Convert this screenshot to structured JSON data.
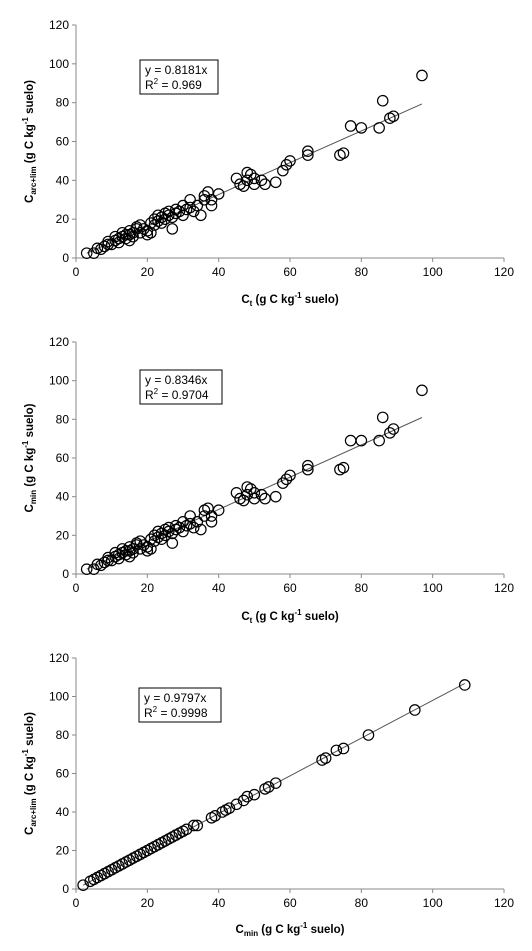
{
  "chart_data": [
    {
      "type": "scatter",
      "xlim": [
        0,
        120
      ],
      "ylim": [
        0,
        120
      ],
      "xticks": [
        "0",
        "20",
        "40",
        "60",
        "80",
        "100",
        "120"
      ],
      "yticks": [
        "0",
        "20",
        "40",
        "60",
        "80",
        "100",
        "120"
      ],
      "grid": false,
      "xlabel": {
        "base": "C",
        "sub": "t",
        "sup": "",
        "text1": " (g C kg",
        "sup2": "-1",
        "text2": " suelo)"
      },
      "ylabel": {
        "base": "C",
        "sub": "arc+lim",
        "text1": " (g C kg",
        "sup2": "-1",
        "text2": " suelo)"
      },
      "equation": "y = 0.8181x",
      "r2_base": "R",
      "r2_sup": "2",
      "r2_rest": " = 0.969",
      "slope": 0.8181,
      "trendline_x": [
        3,
        97
      ],
      "points": [
        [
          3,
          2.5
        ],
        [
          5,
          2.5
        ],
        [
          6,
          5
        ],
        [
          7,
          4.5
        ],
        [
          8,
          6
        ],
        [
          9,
          7
        ],
        [
          9,
          8.5
        ],
        [
          10,
          7
        ],
        [
          11,
          9
        ],
        [
          11,
          11
        ],
        [
          12,
          8
        ],
        [
          12,
          10
        ],
        [
          13,
          11
        ],
        [
          13,
          13
        ],
        [
          14,
          10
        ],
        [
          14,
          12
        ],
        [
          15,
          9
        ],
        [
          15,
          12
        ],
        [
          15,
          14
        ],
        [
          16,
          11
        ],
        [
          16,
          13
        ],
        [
          17,
          15
        ],
        [
          17,
          16
        ],
        [
          18,
          13
        ],
        [
          18,
          17
        ],
        [
          19,
          15
        ],
        [
          20,
          14
        ],
        [
          20,
          12
        ],
        [
          21,
          18
        ],
        [
          21,
          13
        ],
        [
          22,
          17
        ],
        [
          22,
          20
        ],
        [
          23,
          19
        ],
        [
          23,
          22
        ],
        [
          24,
          18
        ],
        [
          24,
          21
        ],
        [
          25,
          23
        ],
        [
          25,
          20
        ],
        [
          26,
          22
        ],
        [
          26,
          24
        ],
        [
          27,
          21
        ],
        [
          27,
          15
        ],
        [
          28,
          25
        ],
        [
          28,
          23
        ],
        [
          29,
          24
        ],
        [
          30,
          27
        ],
        [
          30,
          22
        ],
        [
          31,
          25
        ],
        [
          32,
          30
        ],
        [
          32,
          26
        ],
        [
          33,
          24
        ],
        [
          34,
          27
        ],
        [
          35,
          22
        ],
        [
          36,
          30
        ],
        [
          36,
          32
        ],
        [
          37,
          34
        ],
        [
          38,
          30
        ],
        [
          38,
          27
        ],
        [
          40,
          33
        ],
        [
          45,
          41
        ],
        [
          46,
          38
        ],
        [
          47,
          37
        ],
        [
          48,
          40
        ],
        [
          48,
          44
        ],
        [
          49,
          43
        ],
        [
          50,
          41
        ],
        [
          50,
          38
        ],
        [
          52,
          40
        ],
        [
          53,
          38
        ],
        [
          56,
          39
        ],
        [
          58,
          45
        ],
        [
          59,
          48
        ],
        [
          60,
          50
        ],
        [
          65,
          53
        ],
        [
          65,
          55
        ],
        [
          74,
          53
        ],
        [
          75,
          54
        ],
        [
          77,
          68
        ],
        [
          80,
          67
        ],
        [
          85,
          67
        ],
        [
          86,
          81
        ],
        [
          88,
          72
        ],
        [
          89,
          73
        ],
        [
          97,
          94
        ]
      ]
    },
    {
      "type": "scatter",
      "xlim": [
        0,
        120
      ],
      "ylim": [
        0,
        120
      ],
      "xticks": [
        "0",
        "20",
        "40",
        "60",
        "80",
        "100",
        "120"
      ],
      "yticks": [
        "0",
        "20",
        "40",
        "60",
        "80",
        "100",
        "120"
      ],
      "grid": false,
      "xlabel": {
        "base": "C",
        "sub": "t",
        "sup": "",
        "text1": " (g C kg",
        "sup2": "-1",
        "text2": " suelo)"
      },
      "ylabel": {
        "base": "C",
        "sub": "min",
        "text1": " (g C kg",
        "sup2": "-1",
        "text2": " suelo)"
      },
      "equation": "y = 0.8346x",
      "r2_base": "R",
      "r2_sup": "2",
      "r2_rest": " = 0.9704",
      "slope": 0.8346,
      "trendline_x": [
        3,
        97
      ],
      "points": [
        [
          3,
          2.5
        ],
        [
          5,
          2.5
        ],
        [
          6,
          5
        ],
        [
          7,
          4.5
        ],
        [
          8,
          6
        ],
        [
          9,
          7
        ],
        [
          9,
          8.5
        ],
        [
          10,
          7
        ],
        [
          11,
          9
        ],
        [
          11,
          11
        ],
        [
          12,
          8
        ],
        [
          12,
          10
        ],
        [
          13,
          11
        ],
        [
          13,
          13
        ],
        [
          14,
          10
        ],
        [
          14,
          12
        ],
        [
          15,
          9
        ],
        [
          15,
          12
        ],
        [
          15,
          14
        ],
        [
          16,
          11
        ],
        [
          16,
          13
        ],
        [
          17,
          15
        ],
        [
          17,
          16
        ],
        [
          18,
          13
        ],
        [
          18,
          17
        ],
        [
          19,
          15
        ],
        [
          20,
          14
        ],
        [
          20,
          12
        ],
        [
          21,
          18
        ],
        [
          21,
          13
        ],
        [
          22,
          17
        ],
        [
          22,
          20
        ],
        [
          23,
          19
        ],
        [
          23,
          22
        ],
        [
          24,
          18
        ],
        [
          24,
          21
        ],
        [
          25,
          23
        ],
        [
          25,
          20
        ],
        [
          26,
          22
        ],
        [
          26,
          24
        ],
        [
          27,
          21
        ],
        [
          27,
          16
        ],
        [
          28,
          25
        ],
        [
          28,
          23
        ],
        [
          29,
          24
        ],
        [
          30,
          27
        ],
        [
          30,
          22
        ],
        [
          31,
          25
        ],
        [
          32,
          30
        ],
        [
          32,
          26
        ],
        [
          33,
          24
        ],
        [
          34,
          27
        ],
        [
          35,
          23
        ],
        [
          36,
          30
        ],
        [
          36,
          33
        ],
        [
          37,
          34
        ],
        [
          38,
          30
        ],
        [
          38,
          27
        ],
        [
          40,
          33
        ],
        [
          45,
          42
        ],
        [
          46,
          39
        ],
        [
          47,
          38
        ],
        [
          48,
          41
        ],
        [
          48,
          45
        ],
        [
          49,
          44
        ],
        [
          50,
          42
        ],
        [
          50,
          39
        ],
        [
          52,
          41
        ],
        [
          53,
          39
        ],
        [
          56,
          40
        ],
        [
          58,
          47
        ],
        [
          59,
          49
        ],
        [
          60,
          51
        ],
        [
          65,
          54
        ],
        [
          65,
          56
        ],
        [
          74,
          54
        ],
        [
          75,
          55
        ],
        [
          77,
          69
        ],
        [
          80,
          69
        ],
        [
          85,
          69
        ],
        [
          86,
          81
        ],
        [
          88,
          73
        ],
        [
          89,
          75
        ],
        [
          97,
          95
        ]
      ]
    },
    {
      "type": "scatter",
      "xlim": [
        0,
        120
      ],
      "ylim": [
        0,
        120
      ],
      "xticks": [
        "0",
        "20",
        "40",
        "60",
        "80",
        "100",
        "120"
      ],
      "yticks": [
        "0",
        "20",
        "40",
        "60",
        "80",
        "100",
        "120"
      ],
      "grid": false,
      "xlabel": {
        "base": "C",
        "sub": "min",
        "sup": "",
        "text1": " (g C kg",
        "sup2": "-1",
        "text2": " suelo)"
      },
      "ylabel": {
        "base": "C",
        "sub": "arc+lim",
        "text1": " (g C kg",
        "sup2": "-1",
        "text2": " suelo)"
      },
      "equation": "y = 0.9797x",
      "r2_base": "R",
      "r2_sup": "2",
      "r2_rest": " = 0.9998",
      "slope": 0.9797,
      "trendline_x": [
        2,
        109
      ],
      "points": [
        [
          2,
          2
        ],
        [
          4,
          4
        ],
        [
          5,
          5
        ],
        [
          6,
          6
        ],
        [
          7,
          7
        ],
        [
          8,
          8
        ],
        [
          9,
          9
        ],
        [
          10,
          10
        ],
        [
          11,
          11
        ],
        [
          12,
          12
        ],
        [
          13,
          13
        ],
        [
          14,
          14
        ],
        [
          15,
          15
        ],
        [
          16,
          16
        ],
        [
          17,
          17
        ],
        [
          18,
          18
        ],
        [
          19,
          19
        ],
        [
          20,
          20
        ],
        [
          21,
          21
        ],
        [
          22,
          22
        ],
        [
          23,
          23
        ],
        [
          24,
          24
        ],
        [
          25,
          25
        ],
        [
          26,
          26
        ],
        [
          27,
          27
        ],
        [
          28,
          28
        ],
        [
          29,
          29
        ],
        [
          30,
          30
        ],
        [
          31,
          31
        ],
        [
          33,
          33
        ],
        [
          34,
          33
        ],
        [
          38,
          37
        ],
        [
          39,
          38
        ],
        [
          41,
          40
        ],
        [
          42,
          41
        ],
        [
          43,
          42
        ],
        [
          45,
          44
        ],
        [
          47,
          46
        ],
        [
          48,
          48
        ],
        [
          50,
          49
        ],
        [
          53,
          52
        ],
        [
          54,
          53
        ],
        [
          56,
          55
        ],
        [
          69,
          67
        ],
        [
          70,
          68
        ],
        [
          73,
          72
        ],
        [
          75,
          73
        ],
        [
          82,
          80
        ],
        [
          95,
          93
        ],
        [
          109,
          106
        ]
      ]
    }
  ]
}
